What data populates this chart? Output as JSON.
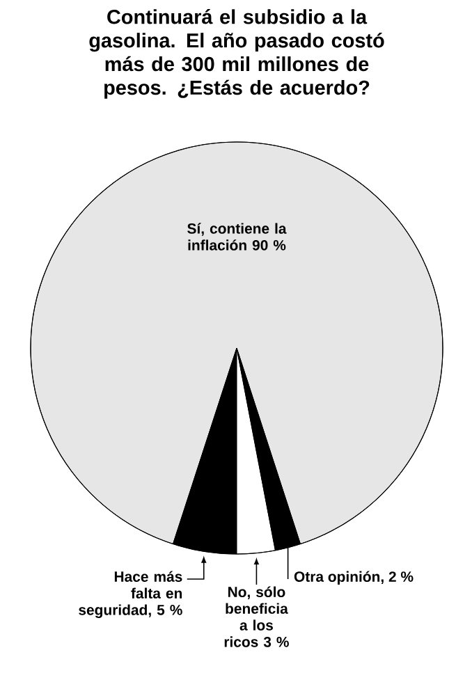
{
  "chart_data": {
    "type": "pie",
    "title": "Continuará el subsidio a la gasolina. El año pasado costó más de 300 mil millones de pesos. ¿Estás de acuerdo?",
    "categories": [
      "Sí, contiene la inflación 90 %",
      "Hace más falta en seguridad, 5 %",
      "No, sólo beneficia a los ricos 3 %",
      "Otra opinión, 2 %"
    ],
    "values": [
      90,
      5,
      3,
      2
    ],
    "colors": [
      "#e6e6e6",
      "#000000",
      "#ffffff",
      "#000000"
    ]
  }
}
